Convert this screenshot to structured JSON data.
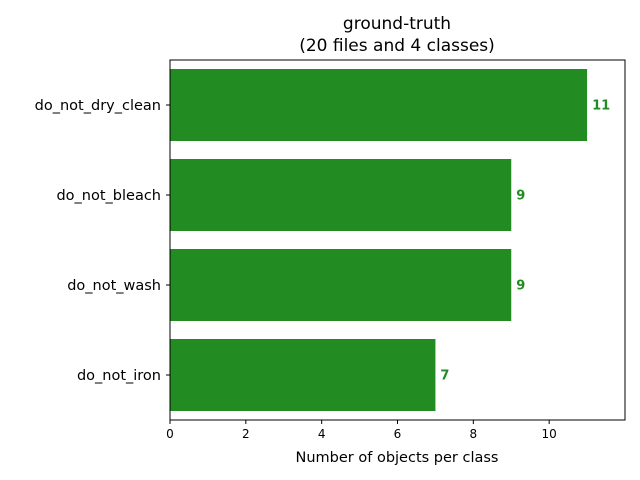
{
  "chart_data": {
    "type": "bar",
    "orientation": "horizontal",
    "title_line1": "ground-truth",
    "title_line2": "(20 files and 4 classes)",
    "xlabel": "Number of objects per class",
    "ylabel": "",
    "categories": [
      "do_not_dry_clean",
      "do_not_bleach",
      "do_not_wash",
      "do_not_iron"
    ],
    "values": [
      11,
      9,
      9,
      7
    ],
    "xlim": [
      0,
      12
    ],
    "xticks": [
      0,
      2,
      4,
      6,
      8,
      10
    ],
    "bar_color": "#228b22",
    "label_color": "#228b22",
    "grid": false,
    "legend": "none"
  }
}
